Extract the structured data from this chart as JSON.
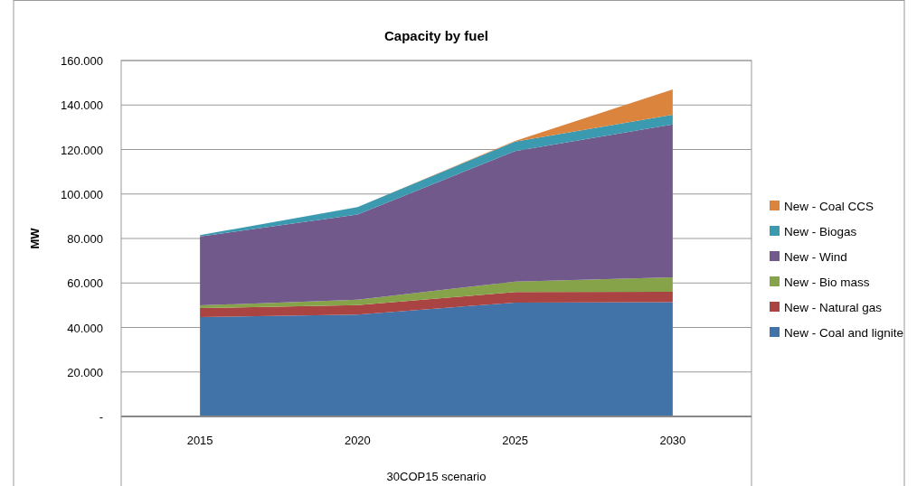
{
  "chart_data": {
    "type": "area",
    "stacked": true,
    "title": "Capacity by fuel",
    "xlabel": "30COP15 scenario",
    "ylabel": "MW",
    "categories": [
      "2015",
      "2020",
      "2025",
      "2030"
    ],
    "series": [
      {
        "name": "New - Coal and lignite",
        "color": "#4172a8",
        "values": [
          44700,
          45800,
          51200,
          51400
        ]
      },
      {
        "name": "New - Natural gas",
        "color": "#a94442",
        "values": [
          4000,
          4300,
          4700,
          4600
        ]
      },
      {
        "name": "New - Bio mass",
        "color": "#87a34a",
        "values": [
          1200,
          2400,
          4700,
          6500
        ]
      },
      {
        "name": "New - Wind",
        "color": "#71598c",
        "values": [
          31000,
          38300,
          58700,
          68800
        ]
      },
      {
        "name": "New - Biogas",
        "color": "#3c9ab0",
        "values": [
          600,
          3300,
          4300,
          4300
        ]
      },
      {
        "name": "New - Coal CCS",
        "color": "#db843d",
        "values": [
          0,
          0,
          300,
          11400
        ]
      }
    ],
    "ylim": [
      0,
      160000
    ],
    "yticks": [
      {
        "value": 0,
        "label": "-"
      },
      {
        "value": 20000,
        "label": "20.000"
      },
      {
        "value": 40000,
        "label": "40.000"
      },
      {
        "value": 60000,
        "label": "60.000"
      },
      {
        "value": 80000,
        "label": "80.000"
      },
      {
        "value": 100000,
        "label": "100.000"
      },
      {
        "value": 120000,
        "label": "120.000"
      },
      {
        "value": 140000,
        "label": "140.000"
      },
      {
        "value": 160000,
        "label": "160.000"
      }
    ],
    "grid": "y",
    "legend": "right"
  }
}
